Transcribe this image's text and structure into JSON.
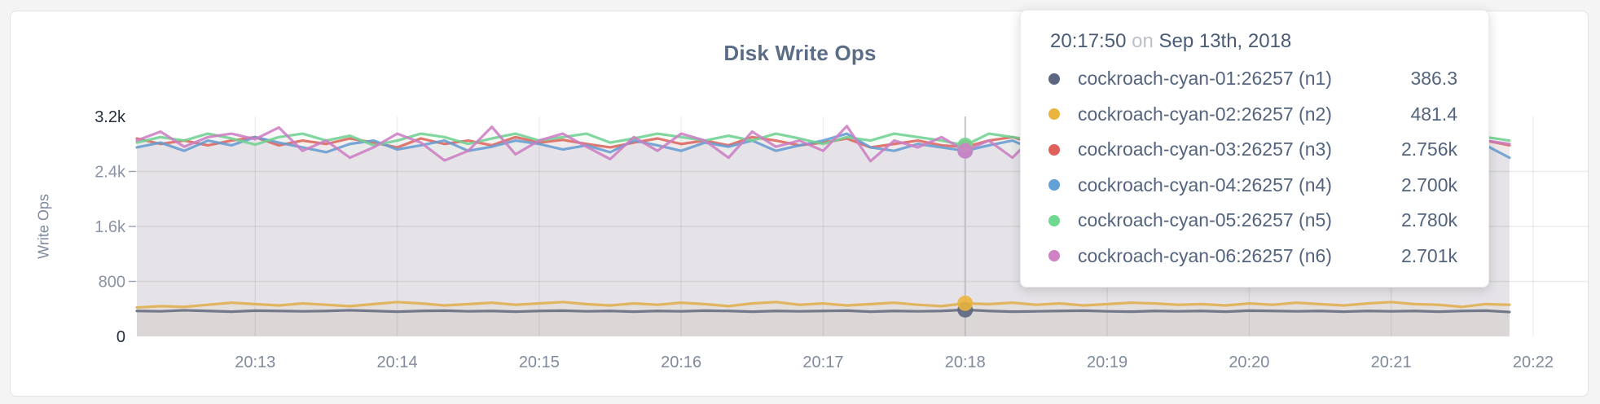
{
  "page": {
    "title": "Disk Write Ops"
  },
  "tooltip": {
    "time": "20:17:50",
    "separator": "on",
    "date": "Sep 13th, 2018",
    "rows": [
      {
        "label": "cockroach-cyan-01:26257 (n1)",
        "value": "386.3",
        "color": "#5c6680"
      },
      {
        "label": "cockroach-cyan-02:26257 (n2)",
        "value": "481.4",
        "color": "#eab43e"
      },
      {
        "label": "cockroach-cyan-03:26257 (n3)",
        "value": "2.756k",
        "color": "#e0605a"
      },
      {
        "label": "cockroach-cyan-04:26257 (n4)",
        "value": "2.700k",
        "color": "#62a0d6"
      },
      {
        "label": "cockroach-cyan-05:26257 (n5)",
        "value": "2.780k",
        "color": "#71d892"
      },
      {
        "label": "cockroach-cyan-06:26257 (n6)",
        "value": "2.701k",
        "color": "#cf82c4"
      }
    ]
  },
  "chart_data": {
    "type": "line",
    "title": "Disk Write Ops",
    "xlabel": "",
    "ylabel": "Write Ops",
    "ylim": [
      0,
      3200
    ],
    "grid": true,
    "x_start": "20:12:10",
    "x_interval_seconds": 10,
    "x_ticks": [
      "20:13",
      "20:14",
      "20:15",
      "20:16",
      "20:17",
      "20:18",
      "20:19",
      "20:20",
      "20:21",
      "20:22"
    ],
    "y_ticks": [
      {
        "value": 0,
        "label": "0",
        "emphasis": true,
        "grid": false
      },
      {
        "value": 800,
        "label": "800",
        "emphasis": false,
        "grid": true
      },
      {
        "value": 1600,
        "label": "1.6k",
        "emphasis": false,
        "grid": true
      },
      {
        "value": 2400,
        "label": "2.4k",
        "emphasis": false,
        "grid": true
      },
      {
        "value": 3200,
        "label": "3.2k",
        "emphasis": true,
        "grid": false
      }
    ],
    "hover": {
      "index": 35,
      "time": "20:17:50",
      "date": "Sep 13th, 2018"
    },
    "series": [
      {
        "id": "n1",
        "name": "cockroach-cyan-01:26257 (n1)",
        "color": "#636b7e",
        "dot_color": "#5c6680",
        "values": [
          370,
          365,
          380,
          370,
          360,
          375,
          370,
          365,
          370,
          380,
          370,
          360,
          370,
          375,
          365,
          370,
          360,
          370,
          375,
          365,
          370,
          360,
          370,
          365,
          375,
          370,
          360,
          370,
          365,
          370,
          375,
          360,
          370,
          365,
          370,
          386.3,
          370,
          360,
          365,
          370,
          375,
          365,
          360,
          370,
          365,
          370,
          360,
          375,
          370,
          365,
          370,
          360,
          370,
          365,
          370,
          360,
          370,
          375,
          355
        ]
      },
      {
        "id": "n2",
        "name": "cockroach-cyan-02:26257 (n2)",
        "color": "#e0ae4d",
        "dot_color": "#eab43e",
        "values": [
          420,
          440,
          430,
          460,
          490,
          470,
          450,
          480,
          460,
          440,
          470,
          500,
          480,
          450,
          470,
          490,
          460,
          480,
          500,
          470,
          450,
          480,
          460,
          490,
          470,
          440,
          480,
          500,
          460,
          480,
          450,
          470,
          490,
          460,
          440,
          481.4,
          470,
          490,
          460,
          480,
          450,
          470,
          490,
          480,
          460,
          470,
          450,
          480,
          460,
          490,
          470,
          450,
          480,
          500,
          470,
          460,
          430,
          470,
          460
        ]
      },
      {
        "id": "n3",
        "name": "cockroach-cyan-03:26257 (n3)",
        "color": "#dd655e",
        "dot_color": "#e0605a",
        "values": [
          2880,
          2800,
          2850,
          2780,
          2850,
          2900,
          2780,
          2850,
          2800,
          2880,
          2820,
          2750,
          2880,
          2800,
          2850,
          2780,
          2900,
          2820,
          2860,
          2800,
          2750,
          2820,
          2880,
          2800,
          2850,
          2780,
          2900,
          2850,
          2780,
          2820,
          2880,
          2750,
          2800,
          2850,
          2780,
          2756,
          2850,
          2900,
          2800,
          2850,
          2760,
          2880,
          2800,
          2750,
          2850,
          2800,
          2880,
          2760,
          2820,
          2850,
          2780,
          2900,
          2820,
          2780,
          2850,
          2800,
          3000,
          2850,
          2780
        ]
      },
      {
        "id": "n4",
        "name": "cockroach-cyan-04:26257 (n4)",
        "color": "#669cd2",
        "dot_color": "#62a0d6",
        "values": [
          2750,
          2820,
          2700,
          2850,
          2780,
          2900,
          2820,
          2750,
          2680,
          2800,
          2850,
          2720,
          2780,
          2850,
          2700,
          2760,
          2850,
          2800,
          2720,
          2780,
          2680,
          2850,
          2780,
          2700,
          2820,
          2760,
          2850,
          2700,
          2780,
          2850,
          2950,
          2750,
          2700,
          2800,
          2750,
          2700,
          2780,
          2850,
          2700,
          2620,
          2750,
          2820,
          2700,
          2780,
          2850,
          2700,
          2750,
          2800,
          2650,
          2750,
          2850,
          2700,
          2780,
          2700,
          2850,
          2750,
          2700,
          2780,
          2600
        ]
      },
      {
        "id": "n5",
        "name": "cockroach-cyan-05:26257 (n5)",
        "color": "#6fd192",
        "dot_color": "#71d892",
        "values": [
          2820,
          2900,
          2850,
          2950,
          2880,
          2790,
          2900,
          2950,
          2850,
          2920,
          2780,
          2850,
          2950,
          2900,
          2800,
          2880,
          2950,
          2850,
          2900,
          2950,
          2820,
          2880,
          2950,
          2900,
          2850,
          2920,
          2850,
          2950,
          2880,
          2800,
          2900,
          2850,
          2950,
          2900,
          2850,
          2780,
          2950,
          2900,
          2850,
          2920,
          2880,
          2800,
          2950,
          2880,
          2850,
          2900,
          2950,
          2850,
          2880,
          2920,
          2850,
          2900,
          2950,
          2850,
          2900,
          2880,
          2820,
          2900,
          2850
        ]
      },
      {
        "id": "n6",
        "name": "cockroach-cyan-06:26257 (n6)",
        "color": "#cc7ec3",
        "dot_color": "#cf82c4",
        "values": [
          2850,
          2980,
          2760,
          2900,
          2950,
          2870,
          3040,
          2700,
          2850,
          2600,
          2750,
          2950,
          2820,
          2560,
          2700,
          3050,
          2650,
          2850,
          2950,
          2760,
          2580,
          2900,
          2700,
          2950,
          2850,
          2600,
          2980,
          2760,
          2850,
          2700,
          3060,
          2550,
          2850,
          2750,
          2900,
          2701,
          2850,
          2600,
          2950,
          2800,
          2870,
          2760,
          2950,
          2700,
          2850,
          2920,
          2600,
          2800,
          2950,
          2750,
          2850,
          2650,
          2950,
          2800,
          2700,
          2900,
          2750,
          2850,
          2800
        ]
      }
    ]
  }
}
